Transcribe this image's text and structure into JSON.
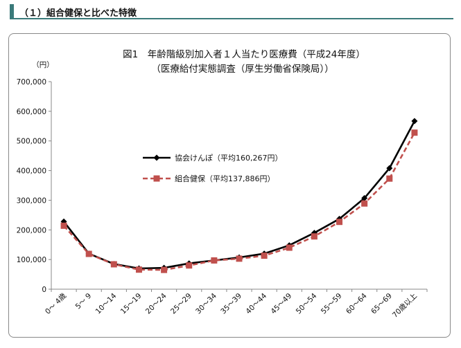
{
  "section": {
    "title": "（１）組合健保と比べた特徴"
  },
  "chart_data": {
    "type": "line",
    "title": "図1　年齢階級別加入者１人当たり医療費（平成24年度）",
    "subtitle": "（医療給付実態調査（厚生労働省保険局））",
    "ylabel": "（円）",
    "ylim": [
      0,
      700000
    ],
    "yticks": [
      0,
      100000,
      200000,
      300000,
      400000,
      500000,
      600000,
      700000
    ],
    "ytick_labels": [
      "0",
      "100,000",
      "200,000",
      "300,000",
      "400,000",
      "500,000",
      "600,000",
      "700,000"
    ],
    "grid": false,
    "legend_position": "center-left",
    "categories": [
      "0～ 4歳",
      "5～ 9",
      "10～14",
      "15～19",
      "20～24",
      "25～29",
      "30～34",
      "35～39",
      "40～44",
      "45～49",
      "50～54",
      "55～59",
      "60～64",
      "65～69",
      "70歳以上"
    ],
    "series": [
      {
        "name": "協会けんぽ（平均160,267円）",
        "color": "#000000",
        "marker": "diamond",
        "line": "solid",
        "values": [
          228000,
          120000,
          85000,
          70000,
          72000,
          87000,
          97000,
          107000,
          120000,
          148000,
          190000,
          237000,
          307000,
          408000,
          567000
        ]
      },
      {
        "name": "組合健保（平均137,886円）",
        "color": "#c0504d",
        "marker": "square",
        "line": "dashed",
        "values": [
          214000,
          119000,
          84000,
          66000,
          65000,
          80000,
          97000,
          103000,
          113000,
          140000,
          178000,
          227000,
          289000,
          373000,
          528000
        ]
      }
    ]
  }
}
